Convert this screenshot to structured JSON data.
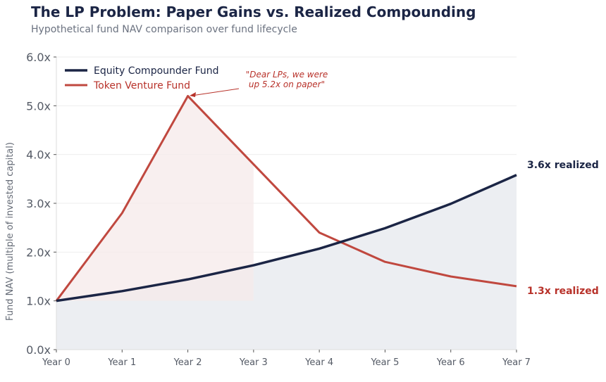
{
  "title": "The LP Problem: Paper Gains vs. Realized Compounding",
  "subtitle": "Hypothetical fund NAV comparison over fund lifecycle",
  "colors": {
    "equity": "#1b2545",
    "token": "#c0483f",
    "equity_fill": "#eceef2",
    "token_fill": "#f5e9e9",
    "label_red": "#b8322a"
  },
  "chart_data": {
    "type": "line",
    "categories": [
      "Year 0",
      "Year 1",
      "Year 2",
      "Year 3",
      "Year 4",
      "Year 5",
      "Year 6",
      "Year 7"
    ],
    "ylabel": "Fund NAV (multiple of invested capital)",
    "xlabel": "",
    "ylim": [
      0,
      6
    ],
    "yticks": [
      "0.0x",
      "1.0x",
      "2.0x",
      "3.0x",
      "4.0x",
      "5.0x",
      "6.0x"
    ],
    "grid": true,
    "legend": "top-left",
    "series": [
      {
        "name": "Equity Compounder Fund",
        "values": [
          1.0,
          1.2,
          1.44,
          1.73,
          2.07,
          2.49,
          2.99,
          3.58
        ],
        "fill": "area to 0"
      },
      {
        "name": "Token Venture Fund",
        "values": [
          1.0,
          2.8,
          5.2,
          3.8,
          2.4,
          1.8,
          1.5,
          1.3
        ],
        "fill": "between 1.0x, Year 0 to Year 3"
      }
    ],
    "annotations": [
      {
        "text": "\"Dear LPs, we were\n up 5.2x on paper\"",
        "target_x": "Year 2",
        "target_y": 5.2
      },
      {
        "text": "3.6x realized",
        "series": "Equity Compounder Fund"
      },
      {
        "text": "1.3x realized",
        "series": "Token Venture Fund"
      }
    ]
  }
}
